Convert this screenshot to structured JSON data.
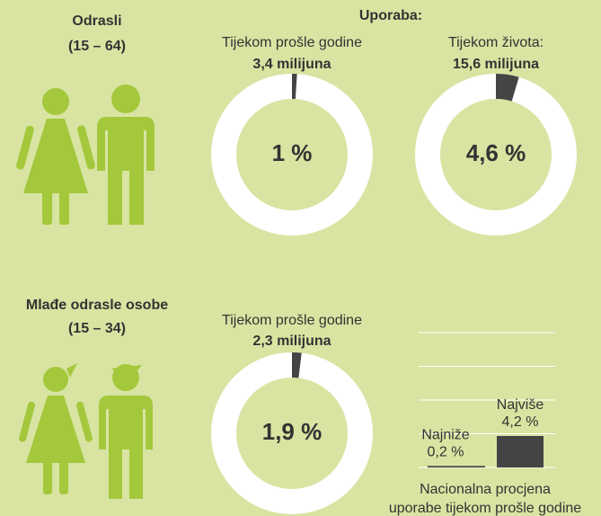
{
  "adults": {
    "title": "Odrasli",
    "age": "(15 – 64)"
  },
  "usage_heading": "Uporaba:",
  "donuts": [
    {
      "label": "Tijekom prošle godine",
      "count": "3,4 milijuna",
      "value": 1,
      "value_label": "1 %"
    },
    {
      "label": "Tijekom života:",
      "count": "15,6 milijuna",
      "value": 4.6,
      "value_label": "4,6 %"
    },
    {
      "label": "Tijekom prošle godine",
      "count": "2,3 milijuna",
      "value": 1.9,
      "value_label": "1,9 %"
    }
  ],
  "young": {
    "title": "Mlađe odrasle osobe",
    "age": "(15 – 34)"
  },
  "range": {
    "ylim": [
      0,
      18
    ],
    "yticks": [
      0,
      4.5,
      9,
      13.5,
      18
    ],
    "bars": [
      {
        "name": "Najniže",
        "value": 0.2,
        "value_label": "0,2 %"
      },
      {
        "name": "Najviše",
        "value": 4.2,
        "value_label": "4,2 %"
      }
    ],
    "caption": [
      "Nacionalna procjena",
      "uporabe tijekom prošle godine"
    ]
  }
}
